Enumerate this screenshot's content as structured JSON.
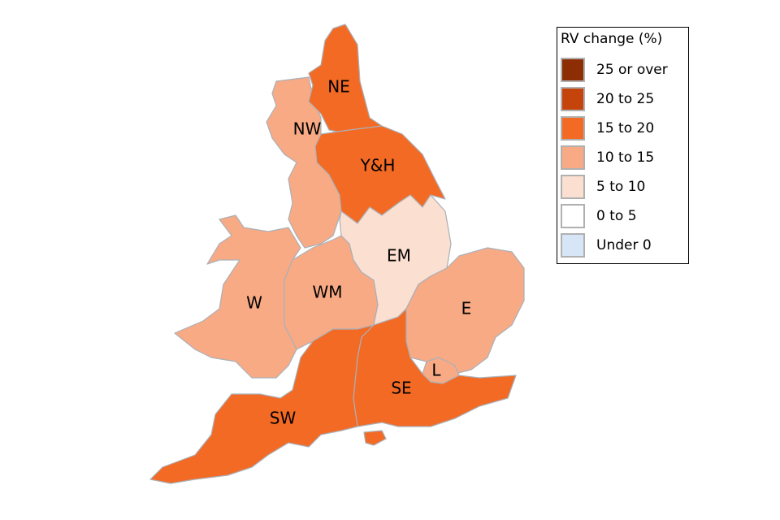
{
  "legend": {
    "title": "RV change (%)",
    "items": [
      {
        "label": "25 or over",
        "color": "#8c2d04"
      },
      {
        "label": "20 to 25",
        "color": "#c4440c"
      },
      {
        "label": "15 to 20",
        "color": "#f36a24"
      },
      {
        "label": "10 to 15",
        "color": "#f8aa84"
      },
      {
        "label": "5 to 10",
        "color": "#fbdfd0"
      },
      {
        "label": "0 to 5",
        "color": "#ffffff"
      },
      {
        "label": "Under 0",
        "color": "#d6e6f6"
      }
    ]
  },
  "regions": [
    {
      "id": "NE",
      "label": "NE",
      "band": "15 to 20"
    },
    {
      "id": "NW",
      "label": "NW",
      "band": "10 to 15"
    },
    {
      "id": "YH",
      "label": "Y&H",
      "band": "15 to 20"
    },
    {
      "id": "EM",
      "label": "EM",
      "band": "5 to 10"
    },
    {
      "id": "W",
      "label": "W",
      "band": "10 to 15"
    },
    {
      "id": "WM",
      "label": "WM",
      "band": "10 to 15"
    },
    {
      "id": "E",
      "label": "E",
      "band": "10 to 15"
    },
    {
      "id": "L",
      "label": "L",
      "band": "10 to 15"
    },
    {
      "id": "SE",
      "label": "SE",
      "band": "15 to 20"
    },
    {
      "id": "SW",
      "label": "SW",
      "band": "15 to 20"
    }
  ]
}
